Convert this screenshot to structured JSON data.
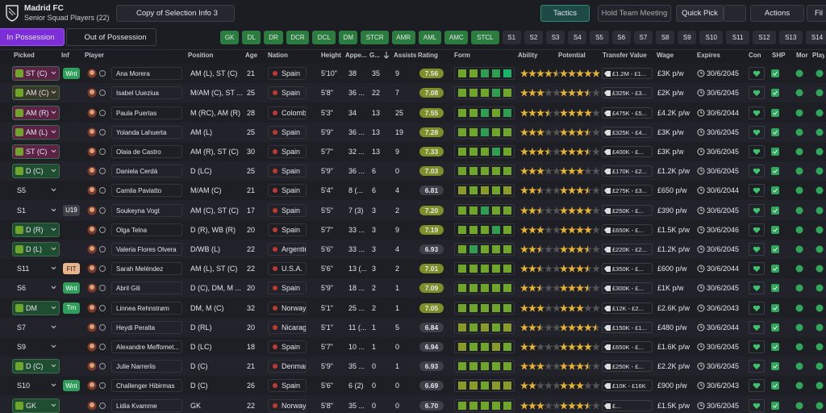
{
  "header": {
    "club": "Madrid FC",
    "subtitle": "Senior Squad Players (22)",
    "view": "Copy of Selection Info 3",
    "buttons": [
      "Tactics",
      "Hold Team Meeting",
      "Quick Pick",
      "Actions",
      "Fil"
    ]
  },
  "tabs": [
    "In Possession",
    "Out of Possession"
  ],
  "filters": [
    {
      "text": "GK",
      "color": "#2b7d3f"
    },
    {
      "text": "DL",
      "color": "#2b7d3f"
    },
    {
      "text": "DR",
      "color": "#2b7d3f"
    },
    {
      "text": "DCR",
      "color": "#2b7d3f"
    },
    {
      "text": "DCL",
      "color": "#2b7d3f"
    },
    {
      "text": "DM",
      "color": "#2b7d3f"
    },
    {
      "text": "STCR",
      "color": "#2b7d3f"
    },
    {
      "text": "AMR",
      "color": "#2b7d3f"
    },
    {
      "text": "AML",
      "color": "#2b7d3f"
    },
    {
      "text": "AMC",
      "color": "#2b7d3f"
    },
    {
      "text": "STCL",
      "color": "#2b7d3f"
    },
    {
      "text": "S1",
      "color": "#2c2d35"
    },
    {
      "text": "S2",
      "color": "#2c2d35"
    },
    {
      "text": "S3",
      "color": "#2c2d35"
    },
    {
      "text": "S4",
      "color": "#2c2d35"
    },
    {
      "text": "S5",
      "color": "#2c2d35"
    },
    {
      "text": "S6",
      "color": "#2c2d35"
    },
    {
      "text": "S7",
      "color": "#2c2d35"
    },
    {
      "text": "S8",
      "color": "#2c2d35"
    },
    {
      "text": "S9",
      "color": "#2c2d35"
    },
    {
      "text": "S10",
      "color": "#2c2d35"
    },
    {
      "text": "S11",
      "color": "#2c2d35"
    },
    {
      "text": "S12",
      "color": "#2c2d35"
    },
    {
      "text": "S13",
      "color": "#2c2d35"
    },
    {
      "text": "S14",
      "color": "#2c2d35"
    }
  ],
  "columns": [
    "Picked",
    "Inf",
    "Player",
    "Position",
    "Age",
    "Nation",
    "Height",
    "Appe...",
    "G...",
    "Assists",
    "Rating",
    "Form",
    "Ability",
    "Potential",
    "Transfer Value",
    "Wage",
    "Expires",
    "Con",
    "SHP",
    "Mor",
    "Playi"
  ],
  "rows": [
    {
      "picked": "ST (C)",
      "picked_color": "#5b2246",
      "inf": "Wnt",
      "inf_color": "#2f9e5a",
      "player": "Ana Morera",
      "position": "AM (L), ST (C)",
      "age": "21",
      "nation": "Spain",
      "height": "5'10\"",
      "apps": "38",
      "goals": "35",
      "assists": "9",
      "rating": "7.56",
      "form": [
        2,
        2,
        3,
        3,
        4
      ],
      "ability": 4.5,
      "potential": 5,
      "value": "£1.2M - £1...",
      "wage": "£3K p/w",
      "expires": "30/6/2045"
    },
    {
      "picked": "AM (C)",
      "picked_color": "#3a3a2a",
      "player": "Isabel Uueziua",
      "position": "M/AM (C), ST ...",
      "age": "25",
      "nation": "Spain",
      "height": "5'8\"",
      "apps": "36 ...",
      "goals": "22",
      "assists": "7",
      "rating": "7.08",
      "form": [
        2,
        2,
        2,
        3,
        2
      ],
      "ability": 3,
      "potential": 3.5,
      "value": "£325K - £3...",
      "wage": "£2K p/w",
      "expires": "30/6/2045"
    },
    {
      "picked": "AM (R)",
      "picked_color": "#5b2246",
      "player": "Paula Puertas",
      "position": "M (RC), AM (R)",
      "age": "28",
      "nation": "Colombia",
      "height": "5'3\"",
      "apps": "34",
      "goals": "13",
      "assists": "25",
      "rating": "7.55",
      "form": [
        2,
        2,
        3,
        2,
        3
      ],
      "ability": 3.5,
      "potential": 4,
      "value": "£475K - £5...",
      "wage": "£4.2K p/w",
      "expires": "30/6/2044"
    },
    {
      "picked": "AM (L)",
      "picked_color": "#5b2246",
      "player": "Yolanda Lahuerta",
      "position": "AM (L)",
      "age": "25",
      "nation": "Spain",
      "height": "5'9\"",
      "apps": "36 ...",
      "goals": "13",
      "assists": "19",
      "rating": "7.28",
      "form": [
        2,
        2,
        3,
        2,
        2
      ],
      "ability": 3,
      "potential": 3.5,
      "value": "£325K - £4...",
      "wage": "£3K p/w",
      "expires": "30/6/2045"
    },
    {
      "picked": "ST (C)",
      "picked_color": "#5b2246",
      "player": "Olaia de Castro",
      "position": "AM (R), ST (C)",
      "age": "30",
      "nation": "Spain",
      "height": "5'7\"",
      "apps": "32 ...",
      "goals": "13",
      "assists": "9",
      "rating": "7.33",
      "form": [
        2,
        2,
        2,
        3,
        2
      ],
      "ability": 3.5,
      "potential": 3.5,
      "value": "£400K - £...",
      "wage": "£3K p/w",
      "expires": "30/6/2045"
    },
    {
      "picked": "D (C)",
      "picked_color": "#1f4d31",
      "player": "Daniela Cerdá",
      "position": "D (LC)",
      "age": "25",
      "nation": "Spain",
      "height": "5'9\"",
      "apps": "36 ...",
      "goals": "6",
      "assists": "0",
      "rating": "7.03",
      "form": [
        2,
        2,
        2,
        2,
        2
      ],
      "ability": 3,
      "potential": 3,
      "value": "£170K - £2...",
      "wage": "£1.2K p/w",
      "expires": "30/6/2045"
    },
    {
      "picked": "S5",
      "player": "Camila Paviatto",
      "position": "M/AM (C)",
      "age": "21",
      "nation": "Spain",
      "height": "5'4\"",
      "apps": "8 (...",
      "goals": "6",
      "assists": "4",
      "rating": "6.81",
      "form": [
        1,
        2,
        1,
        2,
        1
      ],
      "ability": 2.5,
      "potential": 3.5,
      "value": "£275K - £3...",
      "wage": "£650 p/w",
      "expires": "30/6/2044"
    },
    {
      "picked": "S1",
      "inf": "U19",
      "inf_color": "#3e4048",
      "player": "Soukeyna Vogt",
      "position": "AM (C), ST (C)",
      "age": "17",
      "nation": "Spain",
      "height": "5'5\"",
      "apps": "7 (3)",
      "goals": "3",
      "assists": "2",
      "rating": "7.20",
      "form": [
        2,
        2,
        3,
        2,
        2
      ],
      "ability": 2.5,
      "potential": 4,
      "value": "£250K - £...",
      "wage": "£390 p/w",
      "expires": "30/6/2045"
    },
    {
      "picked": "D (R)",
      "picked_color": "#1f4d31",
      "player": "Olga Telna",
      "position": "D (R), WB (R)",
      "age": "20",
      "nation": "Spain",
      "height": "5'7\"",
      "apps": "33 ...",
      "goals": "3",
      "assists": "9",
      "rating": "7.19",
      "form": [
        2,
        2,
        2,
        3,
        2
      ],
      "ability": 3,
      "potential": 4,
      "value": "£650K - £...",
      "wage": "£1.5K p/w",
      "expires": "30/6/2046"
    },
    {
      "picked": "D (L)",
      "picked_color": "#1f4d31",
      "player": "Valeria Flores Olvera",
      "position": "D/WB (L)",
      "age": "22",
      "nation": "Argentina",
      "height": "5'6\"",
      "apps": "33 ...",
      "goals": "3",
      "assists": "4",
      "rating": "6.93",
      "form": [
        2,
        3,
        2,
        2,
        2
      ],
      "ability": 2.5,
      "potential": 3.5,
      "value": "£220K - £2...",
      "wage": "£1.2K p/w",
      "expires": "30/6/2045"
    },
    {
      "picked": "S11",
      "inf": "FIT",
      "inf_color": "#e8b48c",
      "player": "Sarah Meléndez",
      "position": "AM (L), ST (C)",
      "age": "22",
      "nation": "U.S.A.",
      "height": "5'6\"",
      "apps": "13 (...",
      "goals": "3",
      "assists": "2",
      "rating": "7.01",
      "form": [
        2,
        2,
        2,
        2,
        2
      ],
      "ability": 2.5,
      "potential": 3.5,
      "value": "£350K - £...",
      "wage": "£600 p/w",
      "expires": "30/6/2044"
    },
    {
      "picked": "S6",
      "inf": "Wnt",
      "inf_color": "#2f9e5a",
      "player": "Abril Gili",
      "position": "D (C), DM, M ...",
      "age": "20",
      "nation": "Spain",
      "height": "5'9\"",
      "apps": "18 ...",
      "goals": "2",
      "assists": "1",
      "rating": "7.09",
      "form": [
        2,
        2,
        2,
        2,
        2
      ],
      "ability": 2.5,
      "potential": 3.5,
      "value": "£300K - £...",
      "wage": "£1K p/w",
      "expires": "30/6/2045"
    },
    {
      "picked": "DM",
      "picked_color": "#1f4d31",
      "inf": "Trn",
      "inf_color": "#2f9e5a",
      "player": "Linnea Rehnstrøm",
      "position": "DM, M (C)",
      "age": "32",
      "nation": "Norway",
      "height": "5'1\"",
      "apps": "25 ...",
      "goals": "2",
      "assists": "1",
      "rating": "7.05",
      "form": [
        2,
        2,
        2,
        2,
        2
      ],
      "ability": 3,
      "potential": 3,
      "value": "£12K - £2...",
      "wage": "£2.6K p/w",
      "expires": "30/6/2043"
    },
    {
      "picked": "S7",
      "player": "Heydi Peralta",
      "position": "D (RL)",
      "age": "20",
      "nation": "Nicarag...",
      "height": "5'1\"",
      "apps": "11 (...",
      "goals": "1",
      "assists": "5",
      "rating": "6.84",
      "form": [
        1,
        2,
        1,
        2,
        1
      ],
      "ability": 2.5,
      "potential": 4.5,
      "value": "£150K - £1...",
      "wage": "£480 p/w",
      "expires": "30/6/2044"
    },
    {
      "picked": "S9",
      "player": "Alexandre Meffomet...",
      "position": "D (LC)",
      "age": "18",
      "nation": "Spain",
      "height": "5'7\"",
      "apps": "10 ...",
      "goals": "1",
      "assists": "0",
      "rating": "6.94",
      "form": [
        1,
        2,
        2,
        1,
        2
      ],
      "ability": 2,
      "potential": 4,
      "value": "£650K - £...",
      "wage": "£1.6K p/w",
      "expires": "30/6/2045"
    },
    {
      "picked": "D (C)",
      "picked_color": "#1f4d31",
      "player": "Julie Narreriis",
      "position": "D (C)",
      "age": "21",
      "nation": "Denmark",
      "height": "5'9\"",
      "apps": "35 ...",
      "goals": "0",
      "assists": "1",
      "rating": "6.93",
      "form": [
        2,
        2,
        2,
        2,
        2
      ],
      "ability": 3,
      "potential": 3.5,
      "value": "£250K - £...",
      "wage": "£2.2K p/w",
      "expires": "30/6/2045"
    },
    {
      "picked": "S10",
      "inf": "Wnt",
      "inf_color": "#2f9e5a",
      "player": "Challenger Hibirmas",
      "position": "D (C)",
      "age": "26",
      "nation": "Spain",
      "height": "5'6\"",
      "apps": "6 (2)",
      "goals": "0",
      "assists": "0",
      "rating": "6.69",
      "form": [
        1,
        1,
        2,
        1,
        1
      ],
      "ability": 2,
      "potential": 3,
      "value": "£10K - £16K",
      "wage": "£900 p/w",
      "expires": "30/6/2043"
    },
    {
      "picked": "GK",
      "picked_color": "#1f4d31",
      "player": "Lidia Kvamme",
      "position": "GK",
      "age": "22",
      "nation": "Norway",
      "height": "5'8\"",
      "apps": "35 ...",
      "goals": "0",
      "assists": "0",
      "rating": "6.70",
      "form": [
        2,
        2,
        2,
        2,
        2
      ],
      "ability": 3,
      "potential": 3.5,
      "value": "£...",
      "wage": "£1.5K p/w",
      "expires": "30/6/2045"
    }
  ]
}
